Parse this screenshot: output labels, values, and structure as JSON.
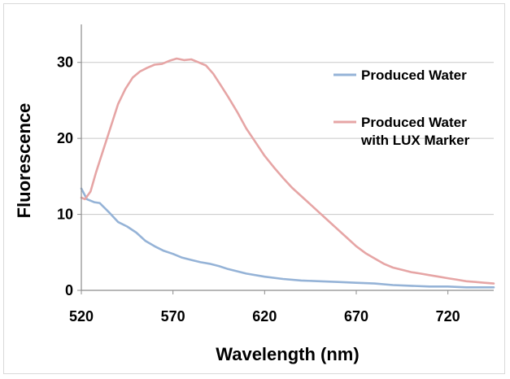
{
  "chart_data": {
    "type": "line",
    "title": "",
    "xlabel": "Wavelength (nm)",
    "ylabel": "Fluorescence",
    "xlim": [
      520,
      745
    ],
    "ylim": [
      0,
      35
    ],
    "x_ticks": [
      520,
      570,
      620,
      670,
      720
    ],
    "y_ticks": [
      0,
      10,
      20,
      30
    ],
    "grid": "horizontal",
    "legend_position": "right",
    "series": [
      {
        "name": "Produced Water",
        "color": "#95b3d7",
        "x": [
          520,
          523,
          527,
          530,
          535,
          540,
          545,
          550,
          555,
          560,
          565,
          570,
          575,
          580,
          585,
          590,
          595,
          600,
          610,
          620,
          630,
          640,
          650,
          660,
          670,
          680,
          690,
          700,
          710,
          720,
          730,
          740,
          745
        ],
        "y": [
          13.4,
          12.0,
          11.6,
          11.5,
          10.3,
          9.0,
          8.4,
          7.6,
          6.5,
          5.8,
          5.2,
          4.8,
          4.3,
          4.0,
          3.7,
          3.5,
          3.2,
          2.8,
          2.2,
          1.8,
          1.5,
          1.3,
          1.2,
          1.1,
          1.0,
          0.9,
          0.7,
          0.6,
          0.5,
          0.5,
          0.4,
          0.4,
          0.4
        ]
      },
      {
        "name": "Produced Water with LUX Marker",
        "color": "#e6a5a5",
        "x": [
          520,
          522,
          525,
          528,
          532,
          536,
          540,
          544,
          548,
          552,
          556,
          560,
          564,
          568,
          572,
          576,
          580,
          584,
          588,
          592,
          596,
          600,
          605,
          610,
          615,
          620,
          625,
          630,
          635,
          640,
          645,
          650,
          655,
          660,
          665,
          670,
          675,
          680,
          685,
          690,
          695,
          700,
          705,
          710,
          715,
          720,
          725,
          730,
          735,
          740,
          745
        ],
        "y": [
          12.2,
          12.0,
          13.0,
          15.5,
          18.5,
          21.5,
          24.5,
          26.5,
          28.0,
          28.8,
          29.3,
          29.7,
          29.8,
          30.2,
          30.5,
          30.3,
          30.4,
          30.0,
          29.6,
          28.5,
          27.0,
          25.5,
          23.5,
          21.3,
          19.5,
          17.7,
          16.2,
          14.8,
          13.5,
          12.4,
          11.3,
          10.2,
          9.1,
          8.0,
          6.9,
          5.8,
          4.9,
          4.2,
          3.5,
          3.0,
          2.7,
          2.4,
          2.2,
          2.0,
          1.8,
          1.6,
          1.4,
          1.2,
          1.1,
          1.0,
          0.9
        ]
      }
    ]
  }
}
